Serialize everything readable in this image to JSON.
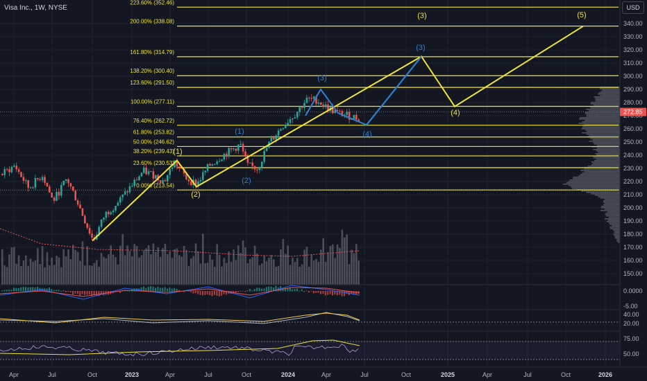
{
  "header": {
    "symbol": "Visa Inc., 1W, NYSE"
  },
  "currency_button": "USD",
  "colors": {
    "background": "#131722",
    "fib": "#f2e234",
    "wave_yellow": "#f2e234",
    "wave_blue": "#2f7fd0",
    "bull": "#26a69a",
    "bear": "#ef5350",
    "volume": "#787b86",
    "grid": "#1e222d"
  },
  "chart_data": {
    "type": "line",
    "price_axis": {
      "min": 140,
      "max": 350,
      "ticks": [
        150,
        160,
        170,
        180,
        190,
        200,
        210,
        220,
        230,
        240,
        250,
        260,
        270,
        280,
        290,
        300,
        310,
        320,
        330,
        340
      ],
      "current_price_label": "272.85"
    },
    "time_axis": {
      "labels": [
        "Apr",
        "Jul",
        "Oct",
        "2023",
        "Apr",
        "Jul",
        "Oct",
        "2024",
        "Apr",
        "Jul",
        "Oct",
        "2025",
        "Apr",
        "Jul",
        "Oct",
        "2026"
      ],
      "range": [
        "2022-02",
        "2026-01"
      ]
    },
    "fibonacci_levels": [
      {
        "label": "0.00% (213.54)",
        "value": 213.54
      },
      {
        "label": "23.60% (230.53)",
        "value": 230.53
      },
      {
        "label": "38.20% (239.43)",
        "value": 239.43
      },
      {
        "label": "50.00% (246.62)",
        "value": 246.62
      },
      {
        "label": "61.80% (253.82)",
        "value": 253.82
      },
      {
        "label": "76.40% (262.72)",
        "value": 262.72
      },
      {
        "label": "100.00% (277.11)",
        "value": 277.11
      },
      {
        "label": "123.60% (291.50)",
        "value": 291.5
      },
      {
        "label": "138.20% (300.40)",
        "value": 300.4
      },
      {
        "label": "161.80% (314.79)",
        "value": 314.79
      },
      {
        "label": "200.00% (338.08)",
        "value": 338.08
      },
      {
        "label": "223.60% (352.46)",
        "value": 352.46
      }
    ],
    "yellow_wave_labels": [
      {
        "label": "(1)",
        "date": "2023-04",
        "value": 236
      },
      {
        "label": "(2)",
        "date": "2023-06",
        "value": 216
      },
      {
        "label": "(3)",
        "date": "2024-10",
        "value": 315
      },
      {
        "label": "(4)",
        "date": "2025-02",
        "value": 278
      },
      {
        "label": "(5)",
        "date": "2025-12",
        "value": 338
      }
    ],
    "blue_wave_labels": [
      {
        "label": "(1)",
        "date": "2023-09",
        "value": 250
      },
      {
        "label": "(2)",
        "date": "2023-10",
        "value": 228
      },
      {
        "label": "(3)",
        "date": "2024-03",
        "value": 290
      },
      {
        "label": "(4)",
        "date": "2024-07",
        "value": 263
      },
      {
        "label": "(3)",
        "date": "2024-10",
        "value": 315
      }
    ],
    "macd_axis": {
      "ticks": [
        "0.0000",
        "-5.00"
      ]
    },
    "adx_axis": {
      "ticks": [
        "40.00",
        "20.00"
      ]
    },
    "rsi_axis": {
      "ticks": [
        "75.00",
        "50.00"
      ]
    }
  }
}
